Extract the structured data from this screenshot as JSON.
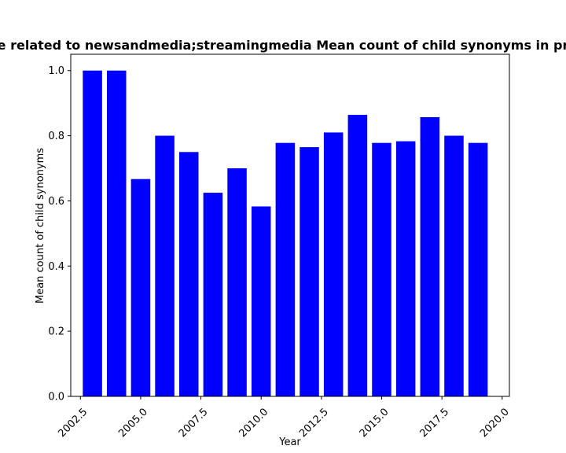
{
  "chart_data": {
    "type": "bar",
    "title": "e related to newsandmedia;streamingmedia Mean count of child synonyms in pr",
    "xlabel": "Year",
    "ylabel": "Mean count of child synonyms",
    "x": [
      2003,
      2004,
      2005,
      2006,
      2007,
      2008,
      2009,
      2010,
      2011,
      2012,
      2013,
      2014,
      2015,
      2016,
      2017,
      2018,
      2019
    ],
    "values": [
      1.0,
      1.0,
      0.667,
      0.8,
      0.75,
      0.625,
      0.7,
      0.583,
      0.778,
      0.765,
      0.81,
      0.864,
      0.778,
      0.783,
      0.857,
      0.8,
      0.778
    ],
    "bar_color": "#0000ff",
    "xlim": [
      2002.1,
      2020.3
    ],
    "ylim": [
      0,
      1.05
    ],
    "xticks": [
      "2002.5",
      "2005.0",
      "2007.5",
      "2010.0",
      "2012.5",
      "2015.0",
      "2017.5",
      "2020.0"
    ],
    "yticks": [
      "0.0",
      "0.2",
      "0.4",
      "0.6",
      "0.8",
      "1.0"
    ],
    "grid": false,
    "legend": "none"
  }
}
